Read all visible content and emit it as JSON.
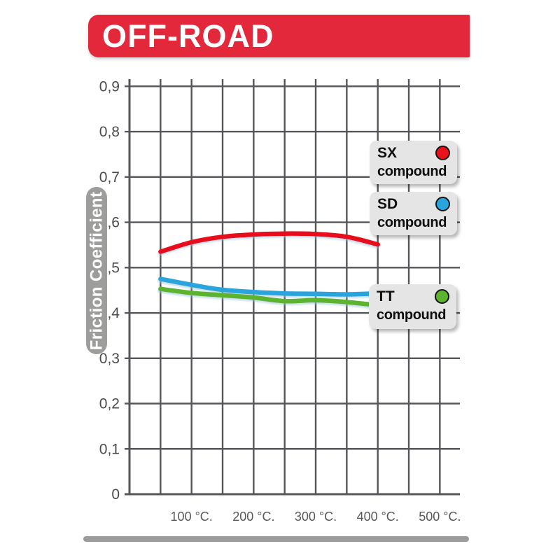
{
  "banner": {
    "label": "OFF-ROAD",
    "bg": "#e2283a",
    "text_color": "#ffffff"
  },
  "ylabel_badge": {
    "text": "Friction Coefficient",
    "bg": "#9d9d9c"
  },
  "legend": {
    "items": [
      {
        "code": "SX",
        "word": "compound",
        "color": "#e8111c"
      },
      {
        "code": "SD",
        "word": "compound",
        "color": "#29a4dd"
      },
      {
        "code": "TT",
        "word": "compound",
        "color": "#5bb42e"
      }
    ]
  },
  "chart_data": {
    "type": "line",
    "title": "OFF-ROAD",
    "xlabel": "",
    "ylabel": "Friction Coefficient",
    "x_unit": "°C",
    "xlim": [
      0,
      530
    ],
    "ylim": [
      0,
      0.9
    ],
    "grid": true,
    "x_gridline_step_deg": 50,
    "y_gridline_step": 0.1,
    "x_tick_values": [
      100,
      200,
      300,
      400,
      500
    ],
    "x_tick_labels": [
      "100 °C.",
      "200 °C.",
      "300 °C.",
      "400 °C.",
      "500 °C."
    ],
    "y_tick_values": [
      0,
      0.1,
      0.2,
      0.3,
      0.4,
      0.5,
      0.6,
      0.7,
      0.8,
      0.9
    ],
    "y_tick_labels": [
      "0",
      "0,1",
      "0,2",
      "0,3",
      "0,4",
      "0,5",
      "0,6",
      "0,7",
      "0,8",
      "0,9"
    ],
    "x": [
      50,
      100,
      150,
      200,
      250,
      300,
      350,
      400
    ],
    "series": [
      {
        "name": "SX compound",
        "color": "#e8111c",
        "values": [
          0.535,
          0.556,
          0.568,
          0.573,
          0.575,
          0.574,
          0.568,
          0.551
        ]
      },
      {
        "name": "SD compound",
        "color": "#29a4dd",
        "values": [
          0.475,
          0.462,
          0.451,
          0.446,
          0.443,
          0.442,
          0.441,
          0.443
        ]
      },
      {
        "name": "TT compound",
        "color": "#5bb42e",
        "values": [
          0.453,
          0.444,
          0.439,
          0.434,
          0.426,
          0.428,
          0.424,
          0.417
        ]
      }
    ],
    "legend_position": "right-inside"
  }
}
